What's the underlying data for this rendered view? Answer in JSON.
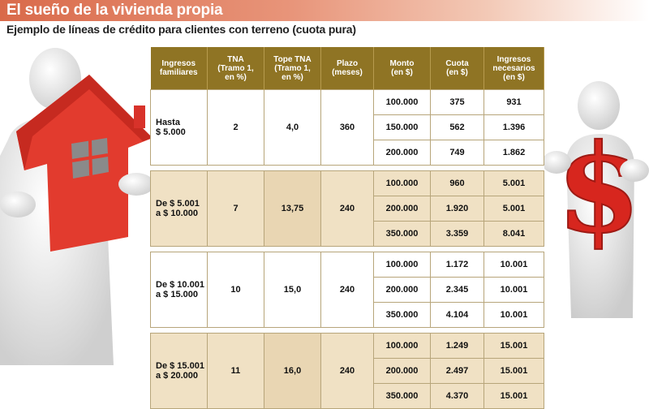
{
  "banner": {
    "title": "El sueño de la vivienda propia"
  },
  "subtitle": "Ejemplo de líneas de crédito para clientes con terreno (cuota pura)",
  "colors": {
    "header": "#8f7424",
    "alt_row": "#f0e1c4",
    "banner": "#d96a4a",
    "house": "#e23b2e"
  },
  "table": {
    "headers": [
      [
        "Ingresos",
        "familiares"
      ],
      [
        "TNA",
        "(Tramo 1,",
        "en %)"
      ],
      [
        "Tope TNA",
        "(Tramo 1,",
        "en %)"
      ],
      [
        "Plazo",
        "(meses)"
      ],
      [
        "Monto",
        "(en $)"
      ],
      [
        "Cuota",
        "(en $)"
      ],
      [
        "Ingresos",
        "necesarios",
        "(en $)"
      ]
    ],
    "groups": [
      {
        "ingresos": [
          "Hasta",
          "$ 5.000"
        ],
        "tna": "2",
        "tope": "4,0",
        "plazo": "360",
        "rows": [
          [
            "100.000",
            "375",
            "931"
          ],
          [
            "150.000",
            "562",
            "1.396"
          ],
          [
            "200.000",
            "749",
            "1.862"
          ]
        ]
      },
      {
        "ingresos": [
          "De $ 5.001",
          "a $ 10.000"
        ],
        "tna": "7",
        "tope": "13,75",
        "plazo": "240",
        "rows": [
          [
            "100.000",
            "960",
            "5.001"
          ],
          [
            "200.000",
            "1.920",
            "5.001"
          ],
          [
            "350.000",
            "3.359",
            "8.041"
          ]
        ]
      },
      {
        "ingresos": [
          "De $ 10.001",
          "a $ 15.000"
        ],
        "tna": "10",
        "tope": "15,0",
        "plazo": "240",
        "rows": [
          [
            "100.000",
            "1.172",
            "10.001"
          ],
          [
            "200.000",
            "2.345",
            "10.001"
          ],
          [
            "350.000",
            "4.104",
            "10.001"
          ]
        ]
      },
      {
        "ingresos": [
          "De $ 15.001",
          "a $ 20.000"
        ],
        "tna": "11",
        "tope": "16,0",
        "plazo": "240",
        "rows": [
          [
            "100.000",
            "1.249",
            "15.001"
          ],
          [
            "200.000",
            "2.497",
            "15.001"
          ],
          [
            "350.000",
            "4.370",
            "15.001"
          ]
        ]
      }
    ]
  },
  "illustrations": {
    "left": "figure-holding-house-icon",
    "right": "figure-holding-dollar-sign-icon"
  }
}
